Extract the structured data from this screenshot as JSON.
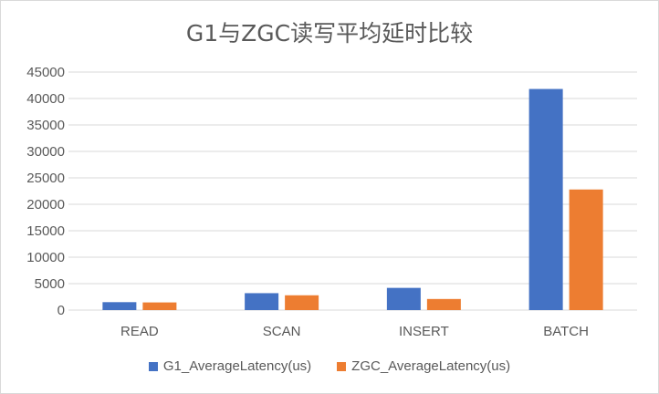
{
  "chart_data": {
    "type": "bar",
    "title": "G1与ZGC读写平均延时比较",
    "categories": [
      "READ",
      "SCAN",
      "INSERT",
      "BATCH"
    ],
    "series": [
      {
        "name": "G1_AverageLatency(us)",
        "color": "#4472C4",
        "values": [
          1500,
          3200,
          4200,
          41800
        ]
      },
      {
        "name": "ZGC_AverageLatency(us)",
        "color": "#ED7D31",
        "values": [
          1450,
          2800,
          2100,
          22800
        ]
      }
    ],
    "xlabel": "",
    "ylabel": "",
    "ylim": [
      0,
      45000
    ],
    "yticks": [
      "0",
      "5000",
      "10000",
      "15000",
      "20000",
      "25000",
      "30000",
      "35000",
      "40000",
      "45000"
    ],
    "grid": true,
    "legend_position": "bottom"
  }
}
